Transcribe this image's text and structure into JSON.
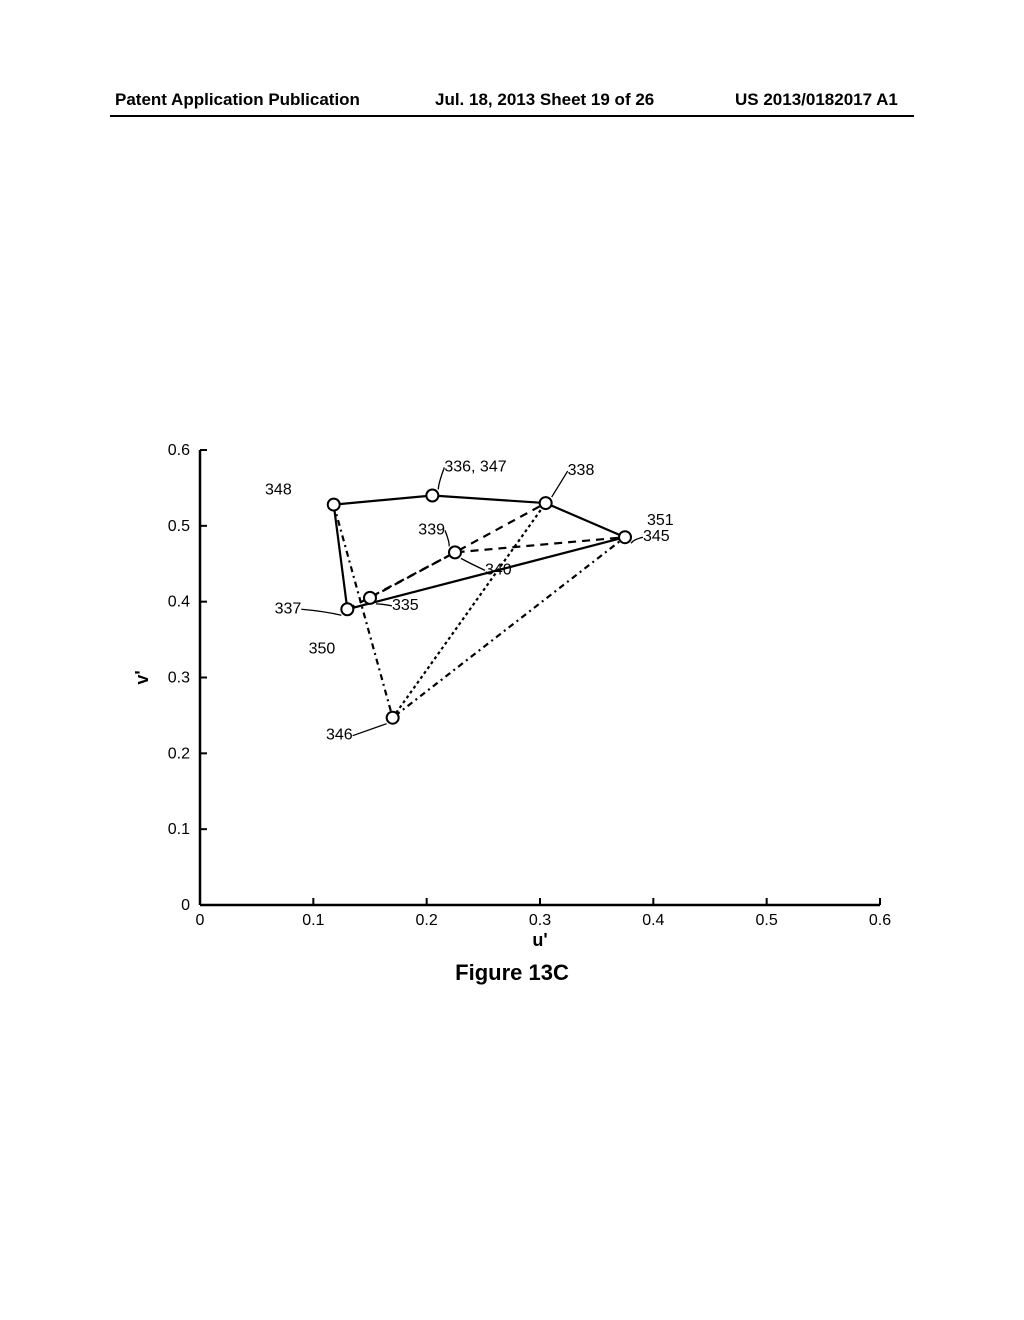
{
  "header": {
    "left": "Patent Application Publication",
    "center": "Jul. 18, 2013  Sheet 19 of 26",
    "right": "US 2013/0182017 A1"
  },
  "caption": "Figure 13C",
  "chart": {
    "type": "scatter",
    "background_color": "#ffffff",
    "stroke_color": "#000000",
    "axis_width": 2.5,
    "xlabel": "u'",
    "ylabel": "v'",
    "label_fontsize": 18,
    "tick_fontsize": 16,
    "xlim": [
      0,
      0.6
    ],
    "ylim": [
      0,
      0.6
    ],
    "xtick_step": 0.1,
    "ytick_step": 0.1,
    "marker_radius": 6,
    "marker_fill": "#ffffff",
    "marker_stroke": "#000000",
    "marker_stroke_width": 2,
    "line_width": 2.2,
    "points": {
      "p348": {
        "u": 0.118,
        "v": 0.528,
        "label": "348",
        "label_dx": -42,
        "label_dy": -10
      },
      "p336_347": {
        "u": 0.205,
        "v": 0.54,
        "label": "336, 347",
        "label_dx": 12,
        "label_dy": -24,
        "leader": true
      },
      "p338": {
        "u": 0.305,
        "v": 0.53,
        "label": "338",
        "label_dx": 22,
        "label_dy": -28,
        "leader": true
      },
      "p345": {
        "u": 0.375,
        "v": 0.485,
        "label": "345",
        "label_dx": 18,
        "label_dy": 4,
        "leader": true
      },
      "p351": {
        "u": 0.375,
        "v": 0.485,
        "label": "351",
        "label_dx": 22,
        "label_dy": -12,
        "no_marker": true
      },
      "p339": {
        "u": 0.225,
        "v": 0.465,
        "label": "339",
        "label_dx": -10,
        "label_dy": -18,
        "leader": true
      },
      "p340": {
        "u": 0.225,
        "v": 0.465,
        "label": "340",
        "label_dx": 30,
        "label_dy": 22,
        "no_marker": true,
        "leader": true
      },
      "p337": {
        "u": 0.13,
        "v": 0.39,
        "label": "337",
        "label_dx": -46,
        "label_dy": 4,
        "leader": true
      },
      "p335": {
        "u": 0.15,
        "v": 0.405,
        "label": "335",
        "label_dx": 22,
        "label_dy": 12,
        "leader": true
      },
      "p350": {
        "u": 0.13,
        "v": 0.39,
        "label": "350",
        "label_dx": -12,
        "label_dy": 44,
        "no_marker": true
      },
      "p346": {
        "u": 0.17,
        "v": 0.247,
        "label": "346",
        "label_dx": -40,
        "label_dy": 22,
        "leader": true
      }
    },
    "paths": [
      {
        "points": [
          "p337",
          "p348",
          "p336_347",
          "p338",
          "p345"
        ],
        "dash": "none"
      },
      {
        "points": [
          "p337",
          "p345"
        ],
        "dash": "none"
      },
      {
        "points": [
          "p348",
          "p346",
          "p345"
        ],
        "dash": "6,4,2,4"
      },
      {
        "points": [
          "p337",
          "p339",
          "p338"
        ],
        "dash": "8,6"
      },
      {
        "points": [
          "p335",
          "p339",
          "p345"
        ],
        "dash": "8,6"
      },
      {
        "points": [
          "p346",
          "p338"
        ],
        "dash": "3,3"
      }
    ]
  }
}
